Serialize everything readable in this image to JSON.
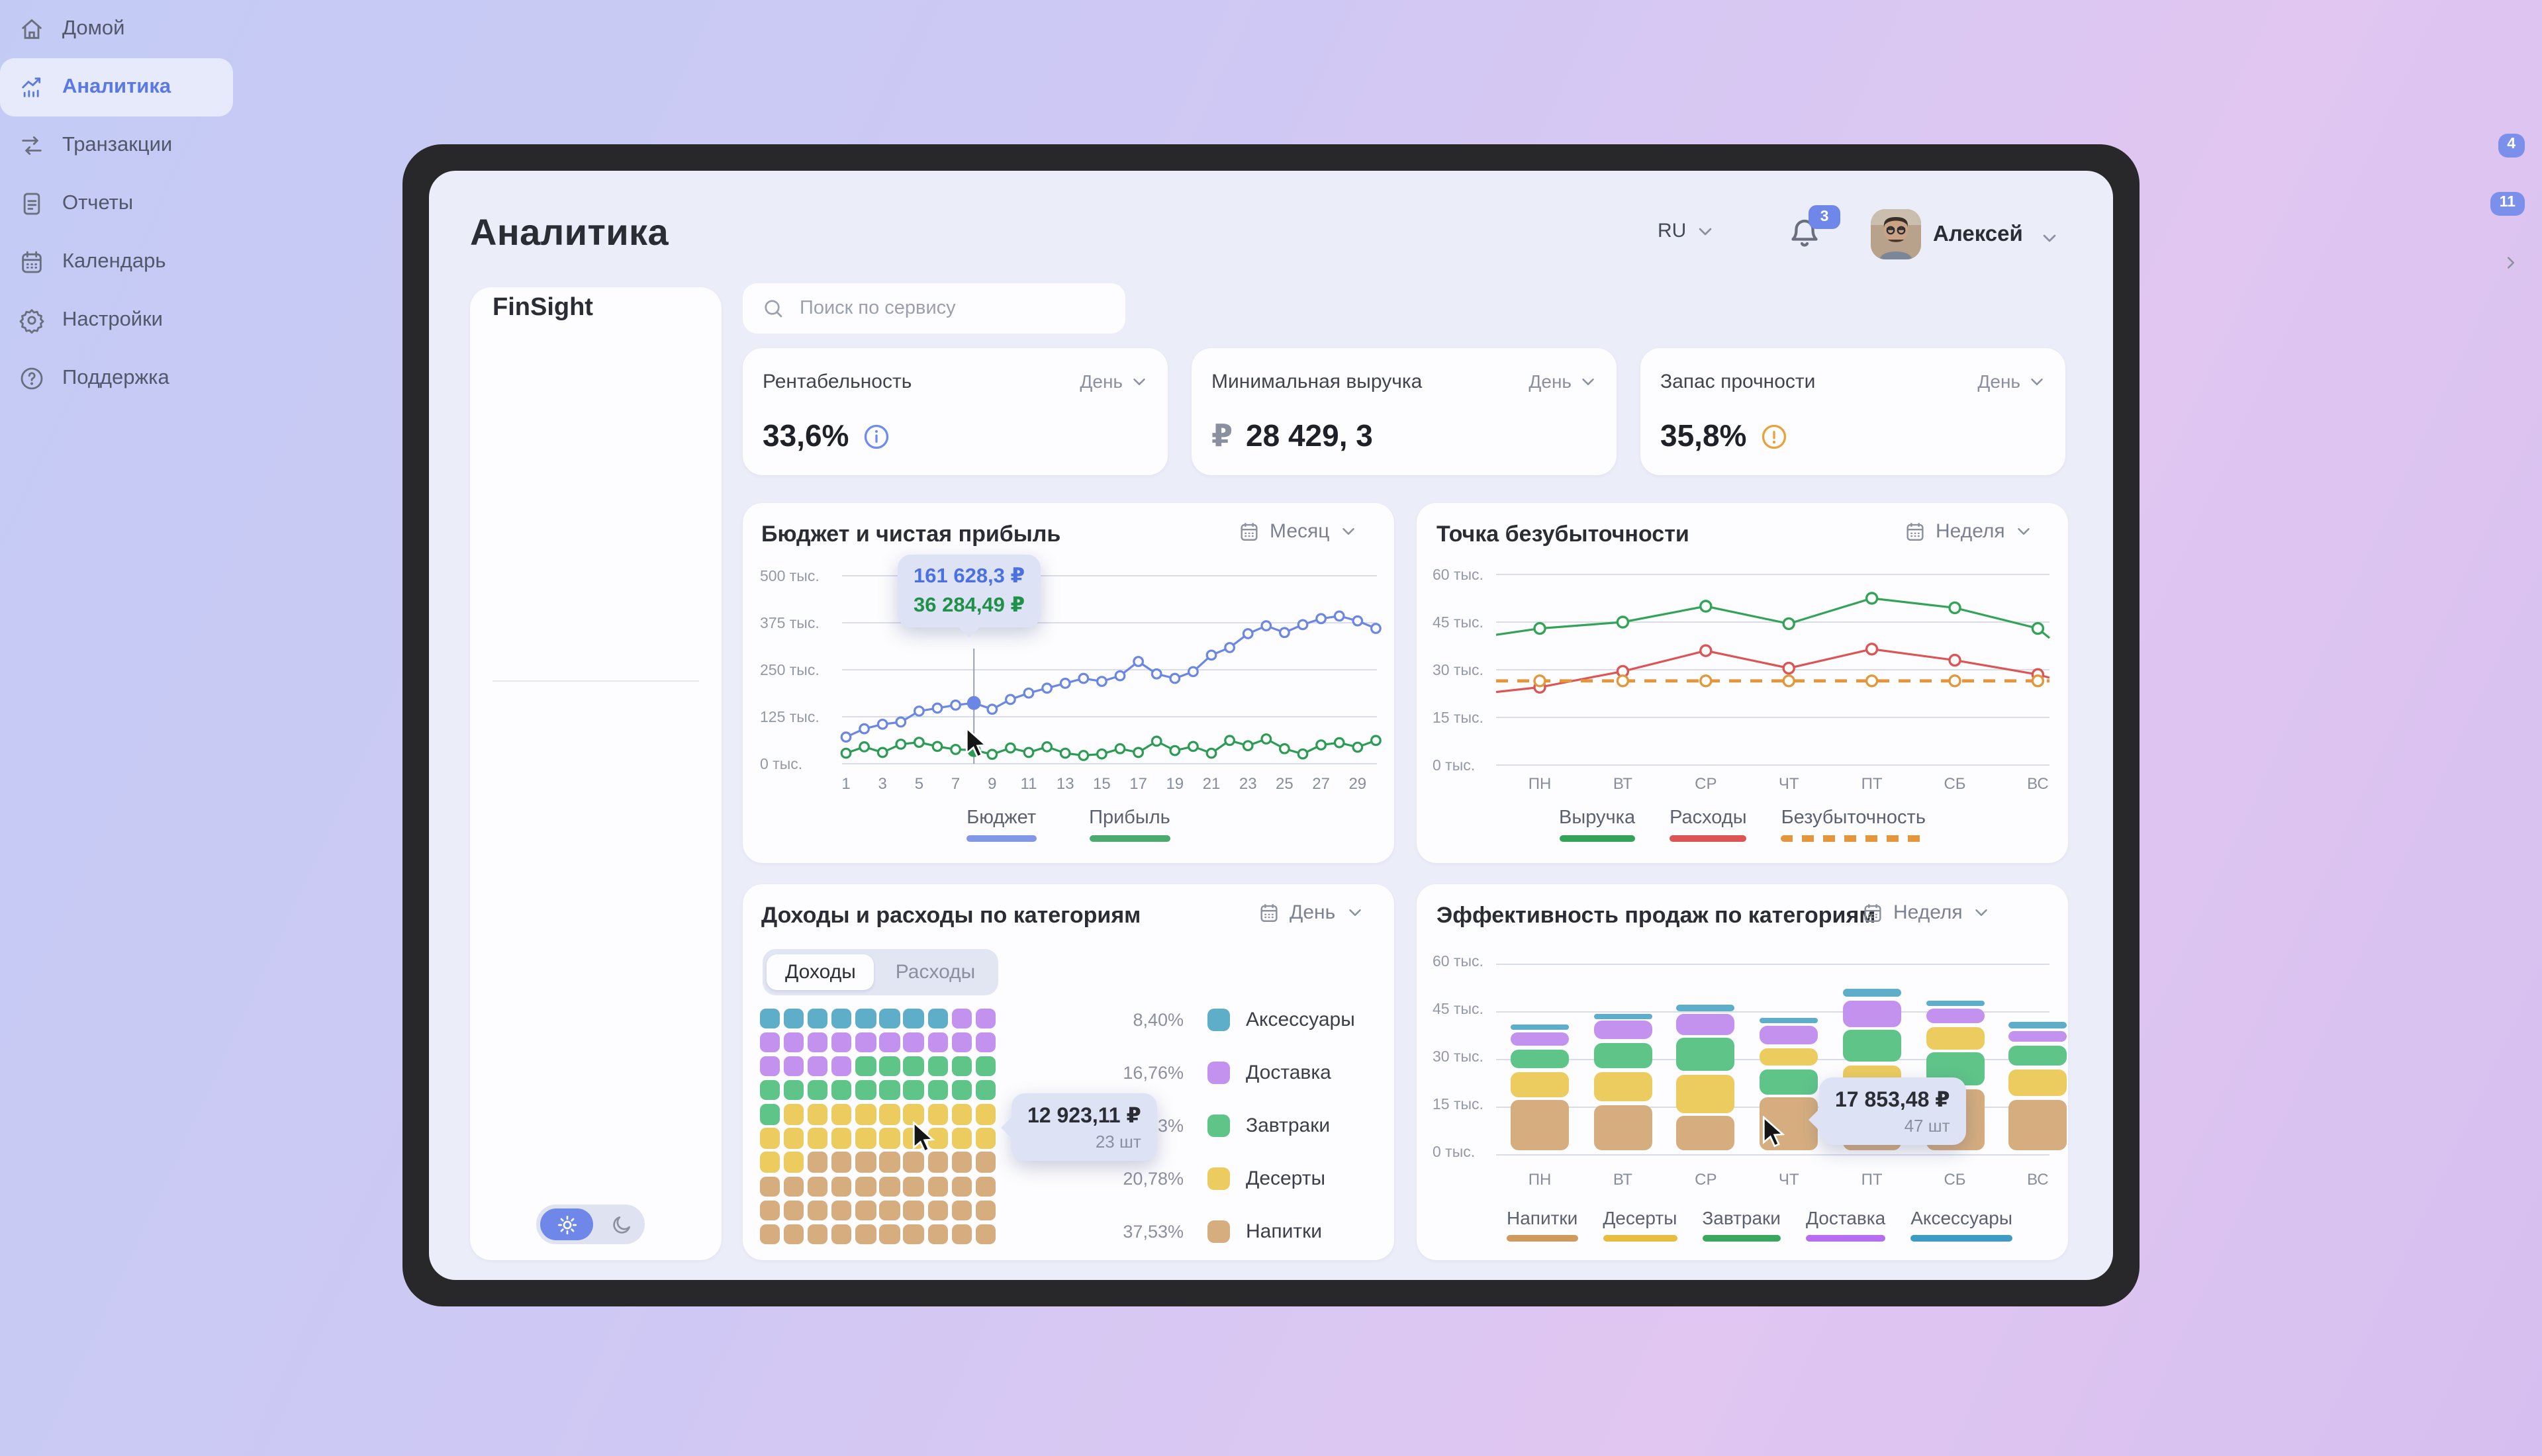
{
  "app": {
    "title": "Аналитика",
    "brand": "FinSight"
  },
  "header": {
    "language": "RU",
    "notifications": "3",
    "user": "Алексей"
  },
  "sidebar": {
    "items": [
      {
        "label": "Домой",
        "icon": "home-icon"
      },
      {
        "label": "Аналитика",
        "icon": "analytics-icon",
        "active": true
      },
      {
        "label": "Транзакции",
        "icon": "transactions-icon",
        "badge": "4"
      },
      {
        "label": "Отчеты",
        "icon": "reports-icon",
        "badge": "11"
      },
      {
        "label": "Календарь",
        "icon": "calendar-icon",
        "chevron": true
      }
    ],
    "secondary": [
      {
        "label": "Настройки",
        "icon": "settings-icon"
      },
      {
        "label": "Поддержка",
        "icon": "support-icon"
      }
    ]
  },
  "search": {
    "placeholder": "Поиск по сервису"
  },
  "kpis": [
    {
      "title": "Рентабельность",
      "period": "День",
      "value": "33,6%",
      "icon": "info"
    },
    {
      "title": "Минимальная выручка",
      "period": "День",
      "prefix": "₽",
      "value": "28 429, 3",
      "icon": ""
    },
    {
      "title": "Запас прочности",
      "period": "День",
      "value": "35,8%",
      "icon": "warning"
    }
  ],
  "colors": {
    "accent_blue": "#5b79e3",
    "badge_blue": "#6e87e8",
    "teal": "#5eadc9",
    "purple": "#c392ef",
    "green": "#5ec488",
    "yellow": "#eccb5f",
    "tan": "#d5ad7e",
    "line_blue": "#6b86e3",
    "profit_green": "#2c9c55",
    "revenue_green": "#33a357",
    "expense_red": "#dd5454",
    "breakeven_orange": "#e3973d"
  },
  "chart_data": [
    {
      "id": "budget",
      "type": "line",
      "title": "Бюджет и чистая прибыль",
      "period": "Месяц",
      "ylim": [
        0,
        500
      ],
      "yticks": [
        500,
        375,
        250,
        125,
        0
      ],
      "ylabels": [
        "500 тыс.",
        "375 тыс.",
        "250 тыс.",
        "125 тыс.",
        "0 тыс."
      ],
      "xticks": [
        "1",
        "3",
        "5",
        "7",
        "9",
        "11",
        "13",
        "15",
        "17",
        "19",
        "21",
        "23",
        "25",
        "27",
        "29"
      ],
      "series": [
        {
          "name": "Бюджет",
          "color": "#6b86e3",
          "values": [
            71,
            93,
            105,
            111,
            140,
            148,
            156,
            161.6,
            145,
            171,
            188,
            201,
            214,
            227,
            219,
            234,
            272,
            239,
            227,
            245,
            289,
            309,
            346,
            367,
            349,
            370,
            386,
            393,
            380,
            360
          ]
        },
        {
          "name": "Прибыль",
          "color": "#2c9c55",
          "values": [
            28,
            45,
            30,
            52,
            57,
            46,
            38,
            36.3,
            25,
            42,
            30,
            45,
            28,
            22,
            26,
            40,
            30,
            60,
            35,
            46,
            28,
            62,
            48,
            66,
            40,
            26,
            50,
            56,
            44,
            62
          ]
        }
      ],
      "highlight_day": 8,
      "tooltip": {
        "budget": "161 628,3 ₽",
        "profit": "36 284,49 ₽"
      }
    },
    {
      "id": "breakeven",
      "type": "line",
      "title": "Точка безубыточности",
      "period": "Неделя",
      "categories": [
        "ПН",
        "ВТ",
        "СР",
        "ЧТ",
        "ПТ",
        "СБ",
        "ВС"
      ],
      "ylim": [
        0,
        60
      ],
      "yticks": [
        60,
        45,
        30,
        15,
        0
      ],
      "ylabels": [
        "60 тыс.",
        "45 тыс.",
        "30 тыс.",
        "15 тыс.",
        "0 тыс."
      ],
      "series": [
        {
          "name": "Выручка",
          "color": "#33a357",
          "style": "solid",
          "values": [
            43,
            45,
            50,
            44.5,
            52.5,
            49.5,
            43
          ],
          "edges": [
            41,
            40
          ]
        },
        {
          "name": "Расходы",
          "color": "#dd5454",
          "style": "solid",
          "values": [
            24.5,
            29.5,
            36,
            30.5,
            36.5,
            33,
            28.5
          ],
          "edges": [
            23,
            27.5
          ]
        },
        {
          "name": "Безубыточность",
          "color": "#e3973d",
          "style": "dashed",
          "values": [
            26.5,
            26.5,
            26.5,
            26.5,
            26.5,
            26.5,
            26.5
          ],
          "edges": [
            26.5,
            26.5
          ]
        }
      ]
    },
    {
      "id": "categories",
      "type": "waffle",
      "title": "Доходы и расходы по категориям",
      "period": "День",
      "tabs": [
        "Доходы",
        "Расходы"
      ],
      "active_tab": "Доходы",
      "cell_colors": {
        "A": "#5eadc9",
        "D": "#c392ef",
        "Z": "#5ec488",
        "Y": "#eccb5f",
        "N": "#d5ad7e"
      },
      "grid": [
        "AAAAAAAADD",
        "DDDDDDDDDD",
        "DDDDZZZZZZ",
        "ZZZZZZZZZZ",
        "ZYYYYYYYYY",
        "YYYYYYYYYY",
        "YYNNNNNNNN",
        "NNNNNNNNNN",
        "NNNNNNNNNN",
        "NNNNNNNNNN"
      ],
      "legend": [
        {
          "pct": "8,40%",
          "label": "Аксессуары",
          "key": "A"
        },
        {
          "pct": "16,76%",
          "label": "Доставка",
          "key": "D"
        },
        {
          "pct": "16,53%",
          "label": "Завтраки",
          "key": "Z"
        },
        {
          "pct": "20,78%",
          "label": "Десерты",
          "key": "Y"
        },
        {
          "pct": "37,53%",
          "label": "Напитки",
          "key": "N"
        }
      ],
      "tooltip": {
        "value": "12 923,11 ₽",
        "count": "23 шт"
      }
    },
    {
      "id": "sales",
      "type": "stacked-bar",
      "title": "Эффективность продаж по категориям",
      "period": "Неделя",
      "categories": [
        "ПН",
        "ВТ",
        "СР",
        "ЧТ",
        "ПТ",
        "СБ",
        "ВС"
      ],
      "ylim": [
        0,
        60
      ],
      "yticks": [
        60,
        45,
        30,
        15,
        0
      ],
      "ylabels": [
        "60 тыс.",
        "45 тыс.",
        "30 тыс.",
        "15 тыс.",
        "0 тыс."
      ],
      "colors": {
        "Напитки": "#d5ad7e",
        "Десерты": "#eccb5f",
        "Завтраки": "#5ec488",
        "Доставка": "#c392ef",
        "Аксессуары": "#5eadc9"
      },
      "bars": [
        [
          {
            "c": "Напитки",
            "v": 17
          },
          {
            "c": "Десерты",
            "v": 9
          },
          {
            "c": "Завтраки",
            "v": 7
          },
          {
            "c": "Доставка",
            "v": 5.5
          },
          {
            "c": "Аксессуары",
            "v": 2.5
          }
        ],
        [
          {
            "c": "Напитки",
            "v": 15.5
          },
          {
            "c": "Десерты",
            "v": 10.5
          },
          {
            "c": "Завтраки",
            "v": 9
          },
          {
            "c": "Доставка",
            "v": 7
          },
          {
            "c": "Аксессуары",
            "v": 2
          }
        ],
        [
          {
            "c": "Напитки",
            "v": 12
          },
          {
            "c": "Десерты",
            "v": 13
          },
          {
            "c": "Завтраки",
            "v": 11.5
          },
          {
            "c": "Доставка",
            "v": 7.5
          },
          {
            "c": "Аксессуары",
            "v": 3
          }
        ],
        [
          {
            "c": "Напитки",
            "v": 17.85
          },
          {
            "c": "Завтраки",
            "v": 9
          },
          {
            "c": "Десерты",
            "v": 6.5
          },
          {
            "c": "Доставка",
            "v": 7
          },
          {
            "c": "Аксессуары",
            "v": 2.5
          }
        ],
        [
          {
            "c": "Напитки",
            "v": 16.5
          },
          {
            "c": "Десерты",
            "v": 11.5
          },
          {
            "c": "Завтраки",
            "v": 11
          },
          {
            "c": "Доставка",
            "v": 9.5
          },
          {
            "c": "Аксессуары",
            "v": 3.5
          }
        ],
        [
          {
            "c": "Напитки",
            "v": 20.5
          },
          {
            "c": "Завтраки",
            "v": 11.5
          },
          {
            "c": "Десерты",
            "v": 8
          },
          {
            "c": "Доставка",
            "v": 6
          },
          {
            "c": "Аксессуары",
            "v": 2.5
          }
        ],
        [
          {
            "c": "Напитки",
            "v": 17.2
          },
          {
            "c": "Десерты",
            "v": 9.5
          },
          {
            "c": "Завтраки",
            "v": 7.5
          },
          {
            "c": "Доставка",
            "v": 4.5
          },
          {
            "c": "Аксессуары",
            "v": 3
          }
        ]
      ],
      "legend": [
        "Напитки",
        "Десерты",
        "Завтраки",
        "Доставка",
        "Аксессуары"
      ],
      "legend_colors": {
        "Напитки": "#cf9b5c",
        "Десерты": "#e7bd3f",
        "Завтраки": "#3aa85c",
        "Доставка": "#b66ef0",
        "Аксессуары": "#3e9cc4"
      },
      "tooltip": {
        "value": "17 853,48 ₽",
        "count": "47 шт"
      }
    }
  ]
}
